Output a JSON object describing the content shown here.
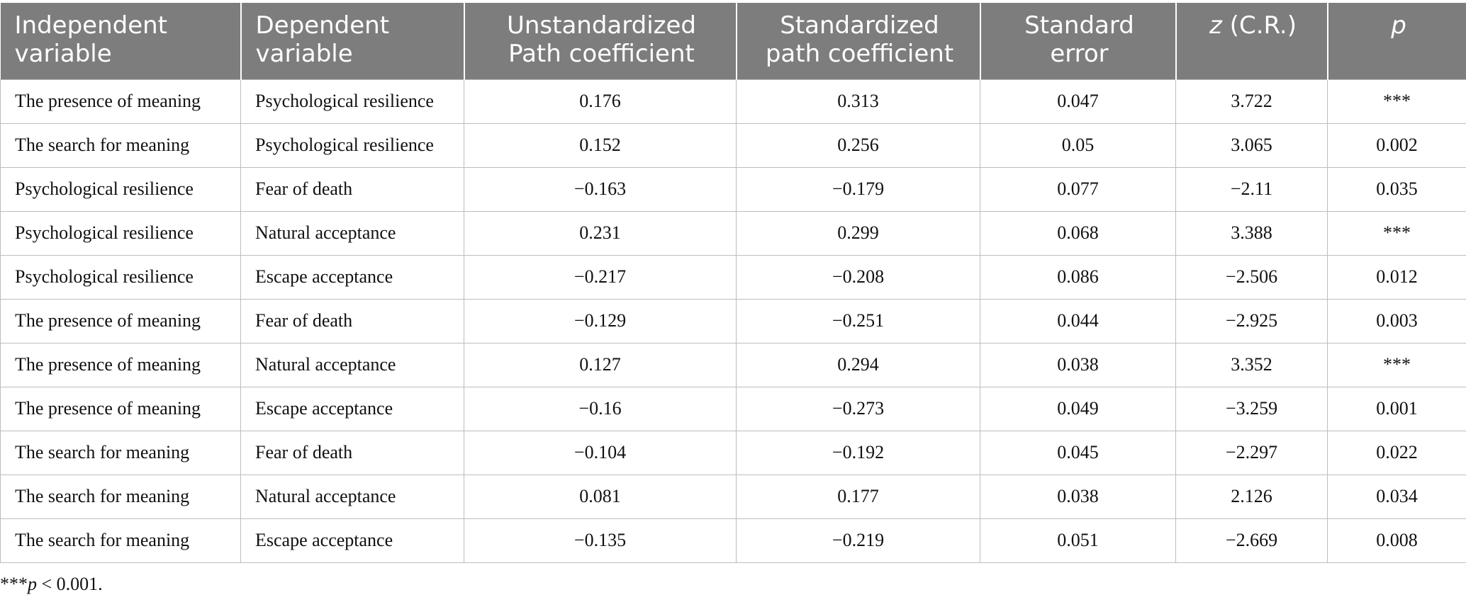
{
  "headers": {
    "independent": "Independent variable",
    "dependent": "Dependent variable",
    "unstd": "Unstandardized Path coefficient",
    "std": "Standardized path coefficient",
    "se": "Standard error",
    "z_italic": "z",
    "z_rest": " (C.R.)",
    "p": "p"
  },
  "rows": [
    [
      "The presence of meaning",
      "Psychological resilience",
      "0.176",
      "0.313",
      "0.047",
      "3.722",
      "***"
    ],
    [
      "The search for meaning",
      "Psychological resilience",
      "0.152",
      "0.256",
      "0.05",
      "3.065",
      "0.002"
    ],
    [
      "Psychological resilience",
      "Fear of death",
      "−0.163",
      "−0.179",
      "0.077",
      "−2.11",
      "0.035"
    ],
    [
      "Psychological resilience",
      "Natural acceptance",
      "0.231",
      "0.299",
      "0.068",
      "3.388",
      "***"
    ],
    [
      "Psychological resilience",
      "Escape acceptance",
      "−0.217",
      "−0.208",
      "0.086",
      "−2.506",
      "0.012"
    ],
    [
      "The presence of meaning",
      "Fear of death",
      "−0.129",
      "−0.251",
      "0.044",
      "−2.925",
      "0.003"
    ],
    [
      "The presence of meaning",
      "Natural acceptance",
      "0.127",
      "0.294",
      "0.038",
      "3.352",
      "***"
    ],
    [
      "The presence of meaning",
      "Escape acceptance",
      "−0.16",
      "−0.273",
      "0.049",
      "−3.259",
      "0.001"
    ],
    [
      "The search for meaning",
      "Fear of death",
      "−0.104",
      "−0.192",
      "0.045",
      "−2.297",
      "0.022"
    ],
    [
      "The search for meaning",
      "Natural acceptance",
      "0.081",
      "0.177",
      "0.038",
      "2.126",
      "0.034"
    ],
    [
      "The search for meaning",
      "Escape acceptance",
      "−0.135",
      "−0.219",
      "0.051",
      "−2.669",
      "0.008"
    ]
  ],
  "footnote": {
    "stars": "***",
    "p": "p",
    "rest": " < 0.001."
  }
}
